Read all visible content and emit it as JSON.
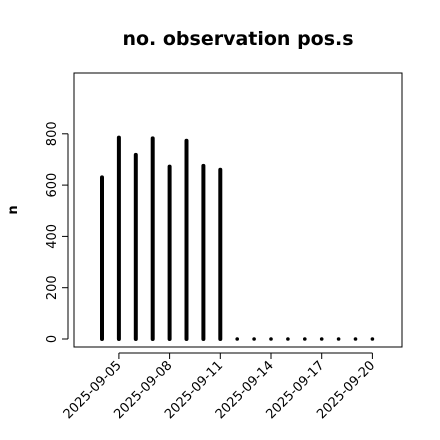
{
  "chart_data": {
    "type": "bar",
    "title": "no. observation pos.s",
    "xlabel": "",
    "ylabel": "n",
    "ylim": [
      0,
      1000
    ],
    "yticks": [
      0,
      200,
      400,
      600,
      800
    ],
    "x": [
      "2025-09-04",
      "2025-09-05",
      "2025-09-06",
      "2025-09-07",
      "2025-09-08",
      "2025-09-09",
      "2025-09-10",
      "2025-09-11",
      "2025-09-12",
      "2025-09-13",
      "2025-09-14",
      "2025-09-15",
      "2025-09-16",
      "2025-09-17",
      "2025-09-18",
      "2025-09-19",
      "2025-09-20"
    ],
    "values": [
      630,
      785,
      718,
      782,
      672,
      773,
      675,
      660,
      0,
      0,
      0,
      0,
      0,
      0,
      0,
      0,
      0
    ],
    "xtick_labels": [
      "2025-09-05",
      "2025-09-08",
      "2025-09-11",
      "2025-09-14",
      "2025-09-17",
      "2025-09-20"
    ],
    "highlight_tick": "2025-09-11",
    "highlight_color": "#2e8b2e",
    "bar_color": "#000000",
    "grid": false
  }
}
